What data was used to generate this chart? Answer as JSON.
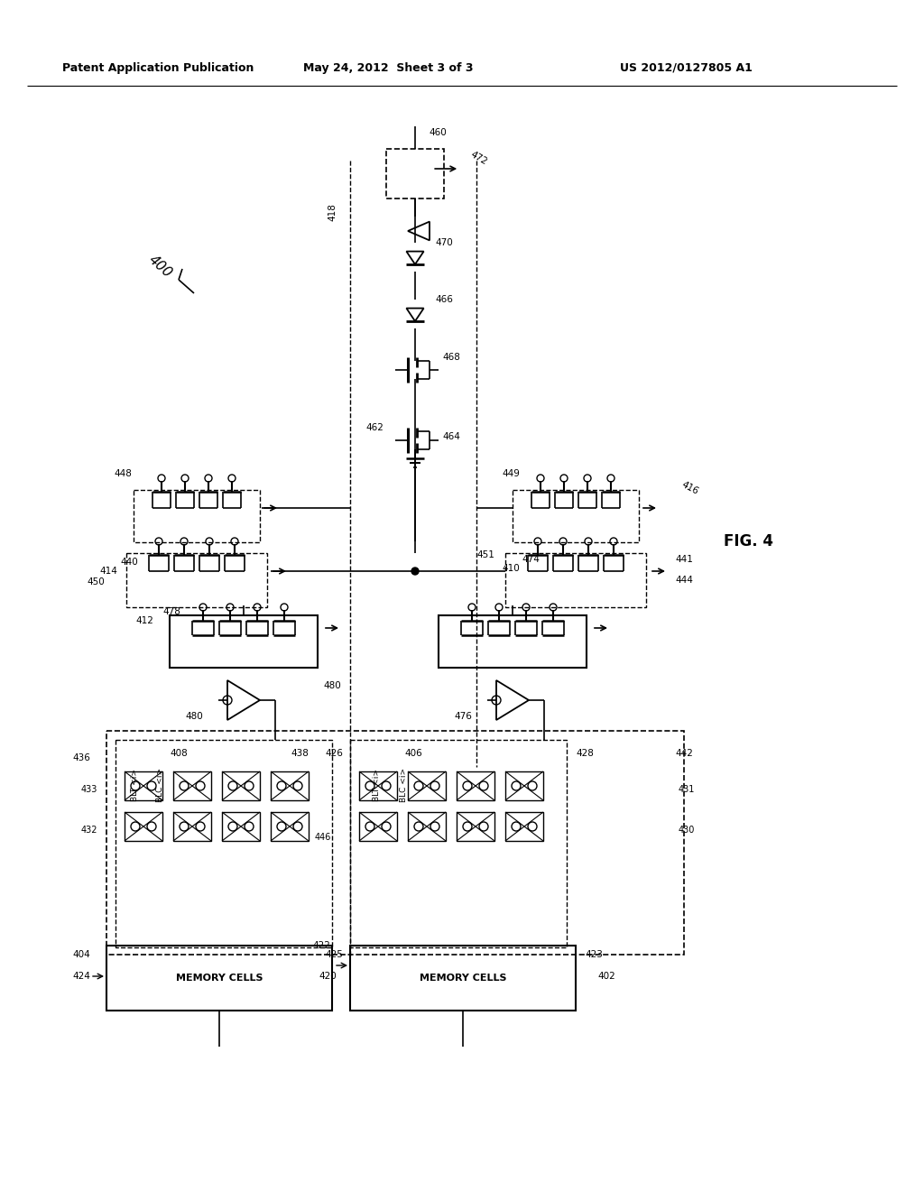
{
  "header_left": "Patent Application Publication",
  "header_center": "May 24, 2012  Sheet 3 of 3",
  "header_right": "US 2012/0127805 A1",
  "fig_label": "FIG. 4",
  "background_color": "#ffffff",
  "line_color": "#000000",
  "text_color": "#000000"
}
